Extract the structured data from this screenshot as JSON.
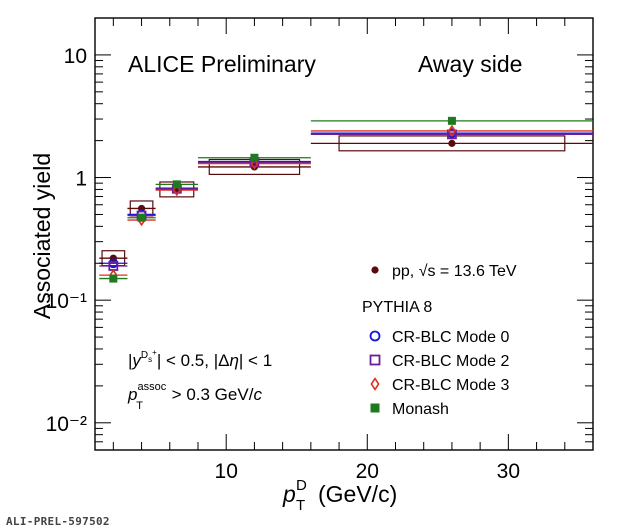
{
  "chart_data": {
    "type": "scatter",
    "title": "ALICE Preliminary",
    "subtitle": "Away side",
    "xlabel": "(GeV/c)",
    "ylabel": "Associated yield",
    "xlim": [
      0.7,
      36
    ],
    "ylim": [
      0.006,
      20
    ],
    "yscale": "log",
    "x_ticks": [
      "10",
      "20",
      "30"
    ],
    "y_ticks": [
      "10⁻²",
      "10⁻¹",
      "1",
      "10"
    ],
    "selection": [
      "|y^{D_s^+}| < 0.5, |Δη| < 1",
      "p_T^{assoc} > 0.3 GeV/c"
    ],
    "bins": [
      [
        1,
        3
      ],
      [
        3,
        5
      ],
      [
        5,
        8
      ],
      [
        8,
        16
      ],
      [
        16,
        36
      ]
    ],
    "series": [
      {
        "name": "pp, √s = 13.6 TeV",
        "marker": "circle-filled",
        "color": "#5a0c0c",
        "x": [
          2,
          4,
          6.5,
          12,
          26
        ],
        "y": [
          0.22,
          0.56,
          0.8,
          1.22,
          1.9
        ],
        "sys_box": true
      },
      {
        "name": "CR-BLC Mode 0",
        "marker": "circle-open",
        "color": "#1515d6",
        "x": [
          2,
          4,
          6.5,
          12,
          26
        ],
        "y": [
          0.2,
          0.5,
          0.82,
          1.35,
          2.3
        ]
      },
      {
        "name": "CR-BLC Mode 2",
        "marker": "square-open",
        "color": "#6a1f9a",
        "x": [
          2,
          4,
          6.5,
          12,
          26
        ],
        "y": [
          0.19,
          0.49,
          0.81,
          1.33,
          2.25
        ]
      },
      {
        "name": "CR-BLC Mode 3",
        "marker": "diamond-open",
        "color": "#e0301e",
        "x": [
          2,
          4,
          6.5,
          12,
          26
        ],
        "y": [
          0.16,
          0.45,
          0.79,
          1.3,
          2.4
        ]
      },
      {
        "name": "Monash",
        "marker": "square-filled",
        "color": "#1f7a1f",
        "x": [
          2,
          4,
          6.5,
          12,
          26
        ],
        "y": [
          0.15,
          0.47,
          0.88,
          1.45,
          2.9
        ]
      }
    ],
    "legend_header": "PYTHIA 8",
    "legend_position": "bottom-right",
    "grid": false
  },
  "footer": {
    "stamp": "ALI-PREL-597502"
  }
}
